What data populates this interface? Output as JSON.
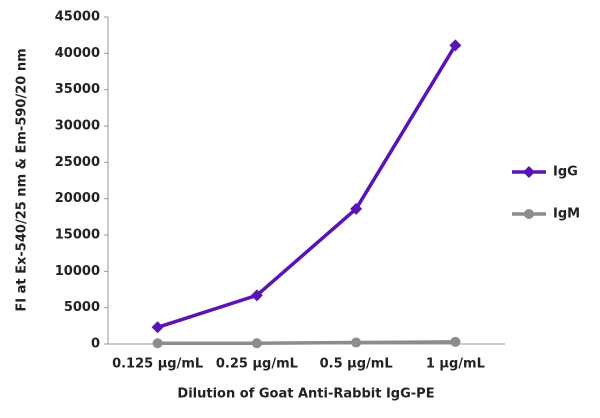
{
  "chart_data": {
    "type": "line",
    "x_label": "Dilution of Goat Anti-Rabbit IgG-PE",
    "y_label": "FI at Ex-540/25 nm & Em-590/20 nm",
    "categories": [
      "0.125 µg/mL",
      "0.25 µg/mL",
      "0.5 µg/mL",
      "1 µg/mL"
    ],
    "series": [
      {
        "name": "IgG",
        "color": "#5a14b4",
        "marker": "diamond",
        "values": [
          2300,
          6700,
          18600,
          41100
        ]
      },
      {
        "name": "IgM",
        "color": "#8c8c8c",
        "marker": "circle",
        "values": [
          100,
          100,
          200,
          300
        ]
      }
    ],
    "ylim": [
      0,
      45000
    ],
    "yticks": [
      0,
      5000,
      10000,
      15000,
      20000,
      25000,
      30000,
      35000,
      40000,
      45000
    ],
    "grid": false,
    "legend": "right"
  }
}
